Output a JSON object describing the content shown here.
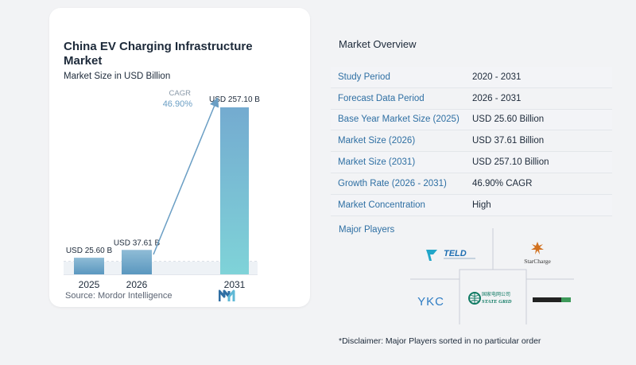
{
  "chart_data": {
    "type": "bar",
    "title": "China EV Charging Infrastructure Market",
    "subtitle": "Market Size in USD Billion",
    "categories": [
      "2025",
      "2026",
      "2031"
    ],
    "values": [
      25.6,
      37.61,
      257.1
    ],
    "value_labels": [
      "USD 25.60 B",
      "USD 37.61 B",
      "USD 257.10 B"
    ],
    "cagr_label": "CAGR",
    "cagr_value": "46.90%",
    "ylim": [
      0,
      257.1
    ],
    "grid": false,
    "colors": {
      "bar_top": "#8fbcd6",
      "bar_bottom": "#5a97bf",
      "bar_2031_top": "#74abd0",
      "bar_2031_bottom": "#7fd3d8",
      "arrow": "#6a9ec4",
      "cagr": "#6a9ec4"
    }
  },
  "source": "Source:  Mordor Intelligence",
  "source_logo_icon": "mordor-intelligence-logo-icon",
  "overview": {
    "title": "Market Overview",
    "rows": [
      {
        "label": "Study Period",
        "value": "2020 - 2031"
      },
      {
        "label": "Forecast Data Period",
        "value": "2026 - 2031"
      },
      {
        "label": "Base Year Market Size (2025)",
        "value": "USD 25.60 Billion"
      },
      {
        "label": "Market Size (2026)",
        "value": "USD 37.61 Billion"
      },
      {
        "label": "Market Size (2031)",
        "value": "USD 257.10 Billion"
      },
      {
        "label": "Growth Rate (2026 - 2031)",
        "value": "46.90% CAGR"
      },
      {
        "label": "Market Concentration",
        "value": "High"
      }
    ]
  },
  "players": {
    "title": "Major Players",
    "logos": [
      {
        "name": "TELD",
        "icon": "teld-logo-icon"
      },
      {
        "name": "StarCharge",
        "icon": "starcharge-logo-icon"
      },
      {
        "name": "YKC",
        "icon": "ykc-logo-icon"
      },
      {
        "name": "State Grid",
        "icon": "state-grid-logo-icon",
        "native_text": "国家电网公司",
        "english": "STATE GRID"
      },
      {
        "name": "",
        "icon": "dark-bar-logo-icon"
      }
    ]
  },
  "disclaimer": "*Disclaimer: Major Players sorted in no particular order"
}
